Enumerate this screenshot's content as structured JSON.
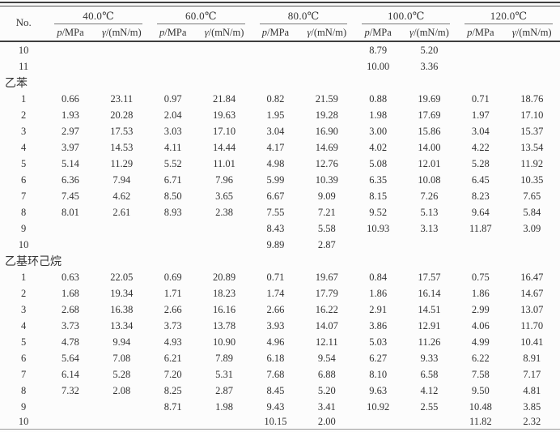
{
  "table": {
    "no_header": "No.",
    "temps": [
      "40.0℃",
      "60.0℃",
      "80.0℃",
      "100.0℃",
      "120.0℃"
    ],
    "sub_p": {
      "symbol": "p",
      "rest": "/MPa"
    },
    "sub_gamma": {
      "symbol": "γ",
      "rest": "/(mN/m)"
    },
    "sections": [
      {
        "label": "",
        "rows": [
          {
            "no": "10",
            "values": [
              "",
              "",
              "",
              "",
              "",
              "",
              "8.79",
              "5.20",
              "",
              ""
            ]
          },
          {
            "no": "11",
            "values": [
              "",
              "",
              "",
              "",
              "",
              "",
              "10.00",
              "3.36",
              "",
              ""
            ]
          }
        ]
      },
      {
        "label": "乙苯",
        "rows": [
          {
            "no": "1",
            "values": [
              "0.66",
              "23.11",
              "0.97",
              "21.84",
              "0.82",
              "21.59",
              "0.88",
              "19.69",
              "0.71",
              "18.76"
            ]
          },
          {
            "no": "2",
            "values": [
              "1.93",
              "20.28",
              "2.04",
              "19.63",
              "1.95",
              "19.28",
              "1.98",
              "17.69",
              "1.97",
              "17.10"
            ]
          },
          {
            "no": "3",
            "values": [
              "2.97",
              "17.53",
              "3.03",
              "17.10",
              "3.04",
              "16.90",
              "3.00",
              "15.86",
              "3.04",
              "15.37"
            ]
          },
          {
            "no": "4",
            "values": [
              "3.97",
              "14.53",
              "4.11",
              "14.44",
              "4.17",
              "14.69",
              "4.02",
              "14.00",
              "4.22",
              "13.54"
            ]
          },
          {
            "no": "5",
            "values": [
              "5.14",
              "11.29",
              "5.52",
              "11.01",
              "4.98",
              "12.76",
              "5.08",
              "12.01",
              "5.28",
              "11.92"
            ]
          },
          {
            "no": "6",
            "values": [
              "6.36",
              "7.94",
              "6.71",
              "7.96",
              "5.99",
              "10.39",
              "6.35",
              "10.08",
              "6.45",
              "10.35"
            ]
          },
          {
            "no": "7",
            "values": [
              "7.45",
              "4.62",
              "8.50",
              "3.65",
              "6.67",
              "9.09",
              "8.15",
              "7.26",
              "8.23",
              "7.65"
            ]
          },
          {
            "no": "8",
            "values": [
              "8.01",
              "2.61",
              "8.93",
              "2.38",
              "7.55",
              "7.21",
              "9.52",
              "5.13",
              "9.64",
              "5.84"
            ]
          },
          {
            "no": "9",
            "values": [
              "",
              "",
              "",
              "",
              "8.43",
              "5.58",
              "10.93",
              "3.13",
              "11.87",
              "3.09"
            ]
          },
          {
            "no": "10",
            "values": [
              "",
              "",
              "",
              "",
              "9.89",
              "2.87",
              "",
              "",
              "",
              ""
            ]
          }
        ]
      },
      {
        "label": "乙基环己烷",
        "rows": [
          {
            "no": "1",
            "values": [
              "0.63",
              "22.05",
              "0.69",
              "20.89",
              "0.71",
              "19.67",
              "0.84",
              "17.57",
              "0.75",
              "16.47"
            ]
          },
          {
            "no": "2",
            "values": [
              "1.68",
              "19.34",
              "1.71",
              "18.23",
              "1.74",
              "17.79",
              "1.86",
              "16.14",
              "1.86",
              "14.67"
            ]
          },
          {
            "no": "3",
            "values": [
              "2.68",
              "16.38",
              "2.66",
              "16.16",
              "2.66",
              "16.22",
              "2.91",
              "14.51",
              "2.99",
              "13.07"
            ]
          },
          {
            "no": "4",
            "values": [
              "3.73",
              "13.34",
              "3.73",
              "13.78",
              "3.93",
              "14.07",
              "3.86",
              "12.91",
              "4.06",
              "11.70"
            ]
          },
          {
            "no": "5",
            "values": [
              "4.78",
              "9.94",
              "4.93",
              "10.90",
              "4.96",
              "12.11",
              "5.03",
              "11.26",
              "4.99",
              "10.41"
            ]
          },
          {
            "no": "6",
            "values": [
              "5.64",
              "7.08",
              "6.21",
              "7.89",
              "6.18",
              "9.54",
              "6.27",
              "9.33",
              "6.22",
              "8.91"
            ]
          },
          {
            "no": "7",
            "values": [
              "6.14",
              "5.28",
              "7.20",
              "5.31",
              "7.68",
              "6.88",
              "8.10",
              "6.58",
              "7.58",
              "7.17"
            ]
          },
          {
            "no": "8",
            "values": [
              "7.32",
              "2.08",
              "8.25",
              "2.87",
              "8.45",
              "5.20",
              "9.63",
              "4.12",
              "9.50",
              "4.81"
            ]
          },
          {
            "no": "9",
            "values": [
              "",
              "",
              "8.71",
              "1.98",
              "9.43",
              "3.41",
              "10.92",
              "2.55",
              "10.48",
              "3.85"
            ]
          },
          {
            "no": "10",
            "values": [
              "",
              "",
              "",
              "",
              "10.15",
              "2.00",
              "",
              "",
              "11.82",
              "2.32"
            ]
          }
        ]
      }
    ]
  }
}
